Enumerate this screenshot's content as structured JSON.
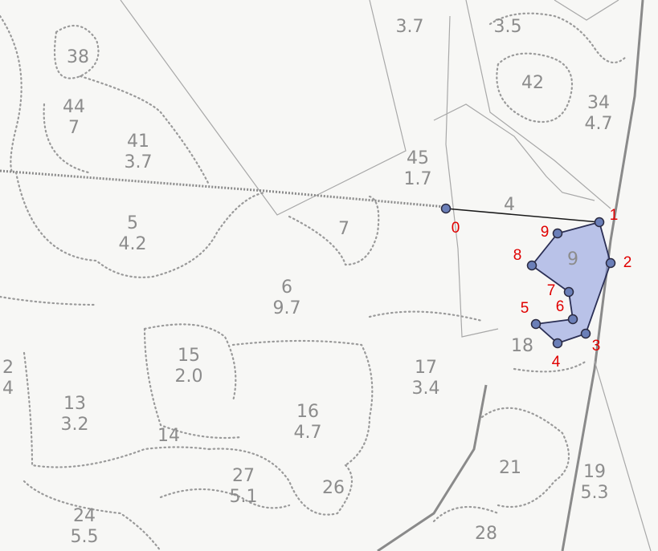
{
  "map": {
    "plots": [
      {
        "id": "p38",
        "lines": [
          "38"
        ]
      },
      {
        "id": "p44",
        "lines": [
          "44",
          "7"
        ]
      },
      {
        "id": "p41",
        "lines": [
          "41",
          "3.7"
        ]
      },
      {
        "id": "p45",
        "lines": [
          "45",
          "1.7"
        ]
      },
      {
        "id": "p37top",
        "lines": [
          "3.7"
        ]
      },
      {
        "id": "p35top",
        "lines": [
          "3.5"
        ]
      },
      {
        "id": "p42",
        "lines": [
          "42"
        ]
      },
      {
        "id": "p34",
        "lines": [
          "34",
          "4.7"
        ]
      },
      {
        "id": "p5",
        "lines": [
          "5",
          "4.2"
        ]
      },
      {
        "id": "p7",
        "lines": [
          "7"
        ]
      },
      {
        "id": "p4",
        "lines": [
          "4"
        ]
      },
      {
        "id": "p6",
        "lines": [
          "6",
          "9.7"
        ]
      },
      {
        "id": "p15",
        "lines": [
          "15",
          "2.0"
        ]
      },
      {
        "id": "p16",
        "lines": [
          "16",
          "4.7"
        ]
      },
      {
        "id": "p17",
        "lines": [
          "17",
          "3.4"
        ]
      },
      {
        "id": "p18",
        "lines": [
          "18"
        ]
      },
      {
        "id": "p13",
        "lines": [
          "13",
          "3.2"
        ]
      },
      {
        "id": "p14",
        "lines": [
          "14"
        ]
      },
      {
        "id": "p27",
        "lines": [
          "27",
          "5.1"
        ]
      },
      {
        "id": "p26",
        "lines": [
          "26"
        ]
      },
      {
        "id": "p21",
        "lines": [
          "21"
        ]
      },
      {
        "id": "p19",
        "lines": [
          "19",
          "5.3"
        ]
      },
      {
        "id": "p24",
        "lines": [
          "24",
          "5.5"
        ]
      },
      {
        "id": "p28",
        "lines": [
          "28"
        ]
      },
      {
        "id": "p2left",
        "lines": [
          "2",
          "4"
        ]
      },
      {
        "id": "p9",
        "lines": [
          "9"
        ]
      }
    ],
    "vertices": [
      {
        "label": "0"
      },
      {
        "label": "1"
      },
      {
        "label": "2"
      },
      {
        "label": "3"
      },
      {
        "label": "4"
      },
      {
        "label": "5"
      },
      {
        "label": "6"
      },
      {
        "label": "7"
      },
      {
        "label": "8"
      },
      {
        "label": "9"
      }
    ],
    "colors": {
      "polygon_fill": "#8f9fe0",
      "polygon_stroke": "#2b2f55",
      "vertex_label": "#e00000",
      "plot_label": "#8c8c8c"
    }
  }
}
